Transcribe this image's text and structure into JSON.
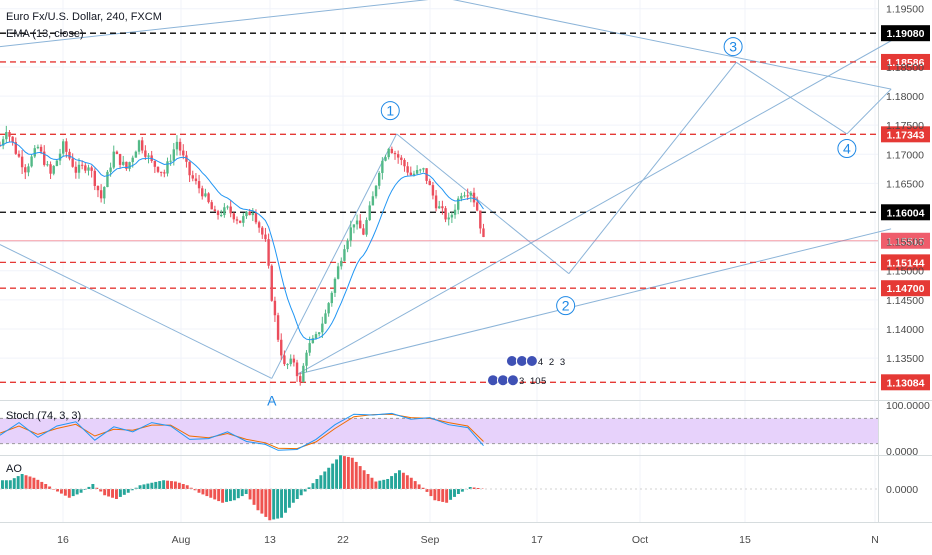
{
  "symbol_title": "Euro Fx/U.S. Dollar, 240, FXCM",
  "indicators": {
    "ema_label": "EMA (13, close)",
    "stoch_label": "Stoch (74, 3, 3)",
    "ao_label": "AO"
  },
  "colors": {
    "bull": "#53b987",
    "bear": "#eb4d5c",
    "ema": "#2196f3",
    "trendline": "#8cb4d8",
    "black_level": "#000000",
    "red_level": "#e53935",
    "current_price": "#ef5d6c",
    "stoch_fill": "#e7d2fb",
    "stoch_k": "#2196f3",
    "stoch_d": "#ef6c00",
    "ao_up": "#26a69a",
    "ao_down": "#ef5350"
  },
  "chart_data": [
    {
      "type": "candlestick",
      "price_axis": {
        "range": [
          1.1278,
          1.1965
        ],
        "ticks": [
          "1.19500",
          "1.18500",
          "1.18000",
          "1.17500",
          "1.17000",
          "1.16500",
          "1.15500",
          "1.15000",
          "1.14500",
          "1.14000",
          "1.13500"
        ]
      },
      "time_axis": {
        "labels": [
          "16",
          "Aug",
          "13",
          "22",
          "Sep",
          "17",
          "Oct",
          "15",
          "N"
        ]
      },
      "horizontal_levels": [
        {
          "label": "1.19080",
          "value": 1.1908,
          "style": "black"
        },
        {
          "label": "1.18586",
          "value": 1.18586,
          "style": "red"
        },
        {
          "label": "1.17343",
          "value": 1.17343,
          "style": "red"
        },
        {
          "label": "1.16004",
          "value": 1.16004,
          "style": "black"
        },
        {
          "label": "1.15144",
          "value": 1.15144,
          "style": "red"
        },
        {
          "label": "1.14700",
          "value": 1.147,
          "style": "red"
        },
        {
          "label": "1.13084",
          "value": 1.13084,
          "style": "red"
        }
      ],
      "current_price": {
        "label": "1.15515",
        "value": 1.15515
      },
      "wave_labels": [
        "1",
        "2",
        "3",
        "4"
      ],
      "point_label": "A",
      "event_markers": {
        "top": [
          "4",
          "2",
          "3"
        ],
        "bottom": [
          "3",
          "10",
          "5"
        ]
      },
      "price_path": [
        [
          0,
          1.1715
        ],
        [
          0.2,
          1.1745
        ],
        [
          0.5,
          1.1705
        ],
        [
          0.8,
          1.1675
        ],
        [
          1.2,
          1.1712
        ],
        [
          1.6,
          1.1665
        ],
        [
          2.0,
          1.1715
        ],
        [
          2.4,
          1.1672
        ],
        [
          2.8,
          1.1682
        ],
        [
          3.2,
          1.1625
        ],
        [
          3.6,
          1.1702
        ],
        [
          4.0,
          1.1675
        ],
        [
          4.4,
          1.1722
        ],
        [
          4.8,
          1.1685
        ],
        [
          5.2,
          1.1668
        ],
        [
          5.6,
          1.1722
        ],
        [
          6.0,
          1.1665
        ],
        [
          6.4,
          1.1635
        ],
        [
          6.8,
          1.1595
        ],
        [
          7.2,
          1.1605
        ],
        [
          7.6,
          1.1585
        ],
        [
          8.0,
          1.1605
        ],
        [
          8.4,
          1.1548
        ],
        [
          8.6,
          1.1455
        ],
        [
          8.8,
          1.1385
        ],
        [
          9.0,
          1.1335
        ],
        [
          9.3,
          1.1345
        ],
        [
          9.5,
          1.1305
        ],
        [
          9.7,
          1.1365
        ],
        [
          10.0,
          1.1385
        ],
        [
          10.3,
          1.1425
        ],
        [
          10.6,
          1.1485
        ],
        [
          10.9,
          1.1545
        ],
        [
          11.2,
          1.1585
        ],
        [
          11.5,
          1.1565
        ],
        [
          11.8,
          1.1625
        ],
        [
          12.0,
          1.1675
        ],
        [
          12.3,
          1.1715
        ],
        [
          12.6,
          1.1695
        ],
        [
          13.0,
          1.1665
        ],
        [
          13.4,
          1.1672
        ],
        [
          13.8,
          1.1615
        ],
        [
          14.2,
          1.1585
        ],
        [
          14.6,
          1.1635
        ],
        [
          14.9,
          1.1638
        ],
        [
          15.1,
          1.1605
        ],
        [
          15.3,
          1.1552
        ]
      ]
    },
    {
      "type": "line",
      "name": "Stoch (74, 3, 3)",
      "axis_ticks": [
        "100.0000",
        "0.0000"
      ],
      "band": [
        20,
        80
      ],
      "k": [
        [
          0,
          40
        ],
        [
          0.6,
          70
        ],
        [
          1.2,
          35
        ],
        [
          1.8,
          62
        ],
        [
          2.4,
          72
        ],
        [
          3.0,
          28
        ],
        [
          3.6,
          60
        ],
        [
          4.2,
          48
        ],
        [
          4.8,
          70
        ],
        [
          5.4,
          62
        ],
        [
          6.0,
          30
        ],
        [
          6.6,
          32
        ],
        [
          7.2,
          48
        ],
        [
          7.8,
          25
        ],
        [
          8.4,
          18
        ],
        [
          8.8,
          4
        ],
        [
          9.4,
          6
        ],
        [
          10.0,
          30
        ],
        [
          10.6,
          65
        ],
        [
          11.2,
          90
        ],
        [
          11.8,
          88
        ],
        [
          12.4,
          92
        ],
        [
          13.0,
          78
        ],
        [
          13.6,
          82
        ],
        [
          14.2,
          65
        ],
        [
          14.8,
          58
        ],
        [
          15.3,
          15
        ]
      ],
      "d": [
        [
          0,
          45
        ],
        [
          0.6,
          62
        ],
        [
          1.2,
          42
        ],
        [
          1.8,
          56
        ],
        [
          2.4,
          66
        ],
        [
          3.0,
          38
        ],
        [
          3.6,
          54
        ],
        [
          4.2,
          52
        ],
        [
          4.8,
          64
        ],
        [
          5.4,
          64
        ],
        [
          6.0,
          38
        ],
        [
          6.6,
          34
        ],
        [
          7.2,
          44
        ],
        [
          7.8,
          30
        ],
        [
          8.4,
          22
        ],
        [
          8.8,
          9
        ],
        [
          9.4,
          8
        ],
        [
          10.0,
          24
        ],
        [
          10.6,
          56
        ],
        [
          11.2,
          84
        ],
        [
          11.8,
          89
        ],
        [
          12.4,
          90
        ],
        [
          13.0,
          82
        ],
        [
          13.6,
          80
        ],
        [
          14.2,
          70
        ],
        [
          14.8,
          62
        ],
        [
          15.3,
          25
        ]
      ]
    },
    {
      "type": "bar",
      "name": "AO",
      "axis_ticks": [
        "0.0000"
      ],
      "values": [
        0.0035,
        0.006,
        0.0045,
        0.002,
        -0.001,
        -0.0035,
        -0.0015,
        0.002,
        -0.0025,
        -0.004,
        -0.0015,
        0.0015,
        0.0025,
        0.0035,
        0.003,
        0.0015,
        -0.0015,
        -0.0035,
        -0.0055,
        -0.0045,
        -0.002,
        -0.0085,
        -0.0125,
        -0.0115,
        -0.0055,
        -0.001,
        0.004,
        0.0085,
        0.0135,
        0.0125,
        0.0075,
        0.003,
        0.004,
        0.0075,
        0.0045,
        0.0005,
        -0.0045,
        -0.0055,
        -0.002,
        0.0008,
        0.0002
      ]
    }
  ]
}
